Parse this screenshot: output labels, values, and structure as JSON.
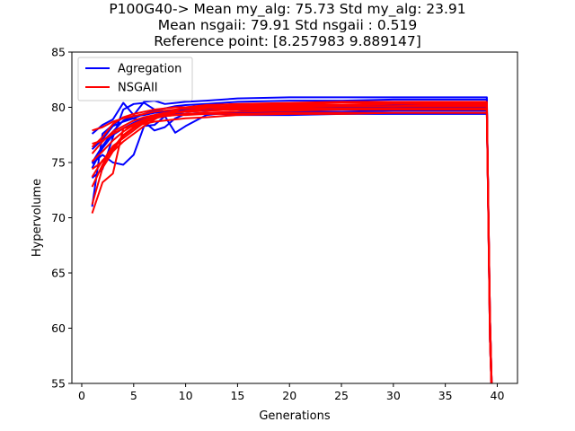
{
  "title_lines": [
    "P100G40-> Mean my_alg: 75.73 Std my_alg: 23.91",
    "Mean nsgaii: 79.91 Std nsgaii : 0.519",
    "Reference point: [8.257983 9.889147]"
  ],
  "chart_data": {
    "type": "line",
    "xlabel": "Generations",
    "ylabel": "Hypervolume",
    "xlim": [
      -0.95,
      41.95
    ],
    "ylim": [
      55,
      85
    ],
    "xticks": [
      0,
      5,
      10,
      15,
      20,
      25,
      30,
      35,
      40
    ],
    "yticks": [
      55,
      60,
      65,
      70,
      75,
      80,
      85
    ],
    "grid": false,
    "legend": {
      "placement": "top-left",
      "entries": [
        "Agregation",
        "NSGAII"
      ]
    },
    "colors": {
      "Agregation": "#0000ff",
      "NSGAII": "#ff0000"
    },
    "series": [
      {
        "name": "Agregation",
        "group": "Agregation",
        "x": [
          1,
          2,
          3,
          4,
          5,
          6,
          7,
          8,
          9,
          10,
          12,
          15,
          20,
          25,
          30,
          35,
          39,
          39.3,
          39.6
        ],
        "y": [
          75.0,
          76.5,
          77.8,
          78.8,
          79.2,
          79.3,
          79.5,
          79.6,
          79.7,
          79.8,
          79.9,
          80.0,
          80.1,
          80.1,
          80.2,
          80.2,
          80.2,
          60,
          50
        ]
      },
      {
        "group": "Agregation",
        "x": [
          1,
          2,
          3,
          4,
          5,
          6,
          7,
          8,
          9,
          10,
          12,
          15,
          20,
          25,
          30,
          35,
          39,
          39.3,
          39.6
        ],
        "y": [
          74.9,
          75.7,
          75.0,
          74.8,
          75.7,
          78.3,
          78.4,
          79.2,
          77.7,
          78.3,
          79.3,
          79.6,
          80.0,
          80.1,
          80.1,
          80.1,
          80.1,
          61,
          50
        ]
      },
      {
        "group": "Agregation",
        "x": [
          1,
          2,
          3,
          4,
          5,
          6,
          7,
          8,
          9,
          10,
          12,
          15,
          20,
          25,
          30,
          35,
          39,
          39.3,
          39.6
        ],
        "y": [
          77.6,
          78.4,
          78.9,
          80.4,
          79.3,
          80.5,
          80.6,
          80.3,
          80.4,
          80.5,
          80.6,
          80.8,
          80.9,
          80.9,
          80.9,
          80.9,
          80.9,
          59,
          50
        ]
      },
      {
        "group": "Agregation",
        "x": [
          1,
          2,
          3,
          4,
          5,
          6,
          7,
          8,
          9,
          10,
          12,
          15,
          20,
          25,
          30,
          35,
          39,
          39.3,
          39.6
        ],
        "y": [
          73.6,
          74.4,
          77.3,
          79.8,
          80.3,
          80.4,
          79.8,
          79.4,
          79.5,
          79.6,
          79.8,
          79.9,
          79.9,
          80.0,
          80.0,
          80.0,
          80.0,
          60,
          50
        ]
      },
      {
        "group": "Agregation",
        "x": [
          1,
          2,
          3,
          4,
          5,
          6,
          7,
          8,
          9,
          10,
          12,
          15,
          20,
          25,
          30,
          35,
          39,
          39.3,
          39.6
        ],
        "y": [
          71.0,
          77.6,
          78.4,
          79.1,
          79.0,
          78.7,
          77.9,
          78.2,
          79.0,
          79.4,
          79.5,
          79.3,
          79.3,
          79.4,
          79.4,
          79.4,
          79.4,
          61,
          50
        ]
      },
      {
        "group": "Agregation",
        "x": [
          1,
          2,
          3,
          4,
          5,
          6,
          7,
          8,
          9,
          10,
          12,
          15,
          20,
          25,
          30,
          35,
          39,
          39.3,
          39.6
        ],
        "y": [
          76.2,
          77.1,
          78.3,
          78.7,
          79.0,
          79.4,
          79.7,
          79.9,
          80.1,
          80.2,
          80.3,
          80.5,
          80.6,
          80.6,
          80.7,
          80.7,
          80.7,
          59,
          50
        ]
      },
      {
        "group": "Agregation",
        "x": [
          1,
          2,
          3,
          4,
          5,
          6,
          7,
          8,
          9,
          10,
          12,
          15,
          20,
          25,
          30,
          35,
          39,
          39.3,
          39.6
        ],
        "y": [
          74.5,
          76.3,
          77.5,
          78.1,
          78.6,
          79.0,
          79.2,
          79.3,
          79.4,
          79.4,
          79.5,
          79.5,
          79.6,
          79.6,
          79.7,
          79.7,
          79.7,
          60,
          50
        ]
      },
      {
        "name": "NSGAII",
        "group": "NSGAII",
        "x": [
          1,
          2,
          3,
          4,
          5,
          6,
          7,
          8,
          9,
          10,
          12,
          15,
          20,
          25,
          30,
          35,
          39,
          39.3,
          39.6
        ],
        "y": [
          70.4,
          73.2,
          74.0,
          78.1,
          78.3,
          78.5,
          78.7,
          78.8,
          78.9,
          79.0,
          79.1,
          79.3,
          79.4,
          79.4,
          79.5,
          79.5,
          79.5,
          60,
          50
        ]
      },
      {
        "group": "NSGAII",
        "x": [
          1,
          2,
          3,
          4,
          5,
          6,
          7,
          8,
          9,
          10,
          12,
          15,
          20,
          25,
          30,
          35,
          39,
          39.3,
          39.6
        ],
        "y": [
          74.4,
          75.1,
          76.5,
          77.2,
          77.9,
          78.6,
          79.0,
          79.3,
          79.5,
          79.7,
          79.9,
          80.0,
          80.1,
          80.1,
          80.1,
          80.1,
          80.1,
          61,
          50
        ]
      },
      {
        "group": "NSGAII",
        "x": [
          1,
          2,
          3,
          4,
          5,
          6,
          7,
          8,
          9,
          10,
          12,
          15,
          20,
          25,
          30,
          35,
          39,
          39.3,
          39.6
        ],
        "y": [
          76.7,
          77.0,
          77.6,
          78.1,
          78.5,
          78.9,
          79.2,
          79.4,
          79.5,
          79.6,
          79.7,
          79.8,
          79.9,
          79.9,
          79.9,
          79.9,
          79.9,
          59,
          50
        ]
      },
      {
        "group": "NSGAII",
        "x": [
          1,
          2,
          3,
          4,
          5,
          6,
          7,
          8,
          9,
          10,
          12,
          15,
          20,
          25,
          30,
          35,
          39,
          39.3,
          39.6
        ],
        "y": [
          77.9,
          78.2,
          78.7,
          79.0,
          79.2,
          79.4,
          79.6,
          79.7,
          79.8,
          79.9,
          80.0,
          80.2,
          80.3,
          80.4,
          80.4,
          80.4,
          80.4,
          60,
          50
        ]
      },
      {
        "group": "NSGAII",
        "x": [
          1,
          2,
          3,
          4,
          5,
          6,
          7,
          8,
          9,
          10,
          12,
          15,
          20,
          25,
          30,
          35,
          39,
          39.3,
          39.6
        ],
        "y": [
          75.1,
          76.0,
          77.0,
          77.8,
          78.4,
          78.8,
          79.1,
          79.2,
          79.3,
          79.3,
          79.4,
          79.4,
          79.5,
          79.5,
          79.5,
          79.5,
          79.5,
          61,
          50
        ]
      },
      {
        "group": "NSGAII",
        "x": [
          1,
          2,
          3,
          4,
          5,
          6,
          7,
          8,
          9,
          10,
          12,
          15,
          20,
          25,
          30,
          35,
          39,
          39.3,
          39.6
        ],
        "y": [
          71.2,
          74.5,
          76.0,
          76.9,
          77.6,
          78.3,
          78.9,
          79.4,
          79.7,
          80.0,
          80.2,
          80.3,
          80.4,
          80.5,
          80.5,
          80.5,
          80.5,
          59,
          50
        ]
      },
      {
        "group": "NSGAII",
        "x": [
          1,
          2,
          3,
          4,
          5,
          6,
          7,
          8,
          9,
          10,
          12,
          15,
          20,
          25,
          30,
          35,
          39,
          39.3,
          39.6
        ],
        "y": [
          73.7,
          75.2,
          76.1,
          77.4,
          78.1,
          78.6,
          79.0,
          79.3,
          79.5,
          79.6,
          79.7,
          79.9,
          80.0,
          80.1,
          80.1,
          80.2,
          80.2,
          60,
          50
        ]
      },
      {
        "group": "NSGAII",
        "x": [
          1,
          2,
          3,
          4,
          5,
          6,
          7,
          8,
          9,
          10,
          12,
          15,
          20,
          25,
          30,
          35,
          39,
          39.3,
          39.6
        ],
        "y": [
          75.8,
          76.9,
          77.8,
          78.3,
          78.8,
          79.1,
          79.3,
          79.5,
          79.6,
          79.6,
          79.7,
          79.8,
          79.8,
          79.8,
          79.9,
          79.9,
          79.9,
          61,
          50
        ]
      },
      {
        "group": "NSGAII",
        "x": [
          1,
          2,
          3,
          4,
          5,
          6,
          7,
          8,
          9,
          10,
          12,
          15,
          20,
          25,
          30,
          35,
          39,
          39.3,
          39.6
        ],
        "y": [
          76.4,
          77.3,
          78.5,
          79.1,
          79.4,
          79.6,
          79.8,
          79.9,
          80.0,
          80.0,
          80.1,
          80.1,
          80.2,
          80.2,
          80.3,
          80.3,
          80.3,
          59,
          50
        ]
      },
      {
        "group": "NSGAII",
        "x": [
          1,
          2,
          3,
          4,
          5,
          6,
          7,
          8,
          9,
          10,
          12,
          15,
          20,
          25,
          30,
          35,
          39,
          39.3,
          39.6
        ],
        "y": [
          72.8,
          74.8,
          76.3,
          77.5,
          78.2,
          78.7,
          79.0,
          79.2,
          79.3,
          79.4,
          79.5,
          79.6,
          79.7,
          79.8,
          79.8,
          79.8,
          79.8,
          60,
          50
        ]
      }
    ]
  }
}
